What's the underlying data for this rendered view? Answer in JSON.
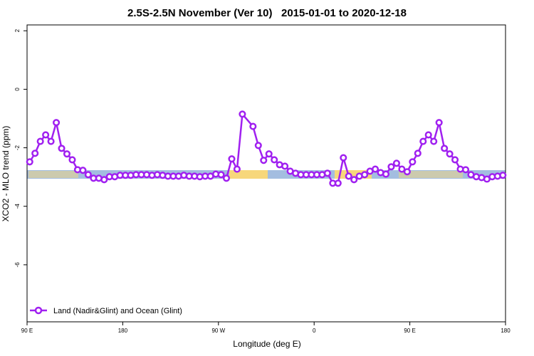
{
  "chart_data": {
    "type": "line",
    "title": "2.5S-2.5N November (Ver 10)   2015-01-01 to 2020-12-18",
    "x_label": "Longitude (deg E)",
    "y_label": "XCO2 - MLO trend (ppm)",
    "x": [
      92.5,
      97.5,
      102.5,
      107.5,
      112.5,
      117.5,
      122.5,
      127.5,
      132.5,
      137.5,
      142.5,
      147.5,
      152.5,
      157.5,
      162.5,
      167.5,
      172.5,
      177.5,
      182.5,
      187.5,
      192.5,
      197.5,
      202.5,
      207.5,
      212.5,
      217.5,
      222.5,
      227.5,
      232.5,
      237.5,
      242.5,
      247.5,
      252.5,
      257.5,
      262.5,
      267.5,
      272.5,
      277.5,
      282.5,
      287.5,
      292.5,
      302.5,
      307.5,
      312.5,
      317.5,
      322.5,
      327.5,
      332.5,
      337.5,
      342.5,
      347.5,
      352.5,
      357.5,
      362.5,
      367.5,
      372.5,
      377.5,
      382.5,
      387.5,
      392.5,
      397.5,
      402.5,
      407.5,
      412.5,
      417.5,
      422.5,
      427.5,
      432.5,
      437.5,
      442.5,
      447.5,
      452.5,
      457.5,
      462.5,
      467.5,
      472.5,
      477.5,
      482.5,
      487.5,
      492.5,
      497.5,
      502.5,
      507.5,
      512.5,
      517.5,
      522.5,
      527.5,
      532.5,
      537.5
    ],
    "series": [
      {
        "name": "Land (Nadir&Glint) and Ocean (Glint)",
        "color": "#a020f0",
        "values": [
          -2.48,
          -2.19,
          -1.78,
          -1.56,
          -1.78,
          -1.14,
          -2.02,
          -2.21,
          -2.41,
          -2.75,
          -2.77,
          -2.92,
          -3.04,
          -3.04,
          -3.09,
          -2.99,
          -2.99,
          -2.94,
          -2.94,
          -2.94,
          -2.92,
          -2.92,
          -2.92,
          -2.94,
          -2.92,
          -2.94,
          -2.97,
          -2.97,
          -2.97,
          -2.94,
          -2.97,
          -2.97,
          -2.99,
          -2.97,
          -2.97,
          -2.9,
          -2.92,
          -3.04,
          -2.38,
          -2.73,
          -0.85,
          -1.27,
          -1.92,
          -2.43,
          -2.21,
          -2.41,
          -2.58,
          -2.63,
          -2.8,
          -2.87,
          -2.92,
          -2.92,
          -2.92,
          -2.92,
          -2.92,
          -2.87,
          -3.21,
          -3.21,
          -2.34,
          -2.97,
          -3.09,
          -2.97,
          -2.92,
          -2.8,
          -2.73,
          -2.85,
          -2.9,
          -2.65,
          -2.53,
          -2.73,
          -2.82,
          -2.48,
          -2.19,
          -1.78,
          -1.56,
          -1.78,
          -1.14,
          -2.02,
          -2.21,
          -2.41,
          -2.73,
          -2.75,
          -2.92,
          -2.99,
          -3.02,
          -3.07,
          -2.99,
          -2.97,
          -2.94
        ]
      }
    ],
    "xlim": [
      90,
      540
    ],
    "xticks": [
      {
        "value": 90,
        "label": "90 E"
      },
      {
        "value": 180,
        "label": "180"
      },
      {
        "value": 270,
        "label": "90 W"
      },
      {
        "value": 360,
        "label": "0"
      },
      {
        "value": 450,
        "label": "90 E"
      },
      {
        "value": 540,
        "label": "180"
      }
    ],
    "ylim": [
      -7.95,
      2.2
    ],
    "yticks": [
      2,
      0,
      -2,
      -4,
      -6
    ],
    "legend": "bottom-left"
  }
}
